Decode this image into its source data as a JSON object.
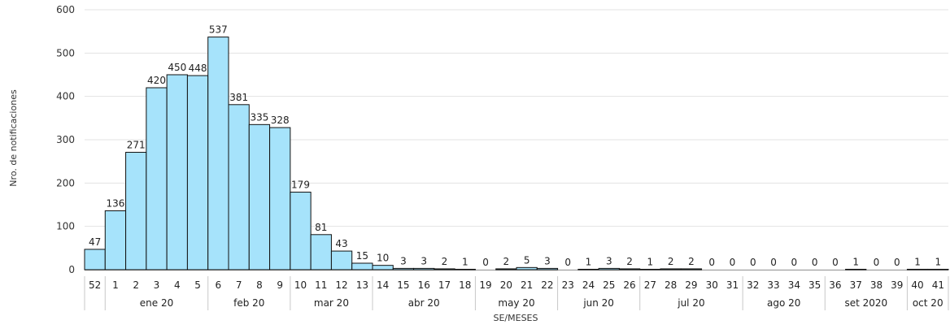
{
  "chart_data": {
    "type": "bar",
    "ylabel": "Nro. de notificaciones",
    "xlabel": "SE/MESES",
    "ylim": [
      0,
      600
    ],
    "yticks": [
      "0",
      "100",
      "200",
      "300",
      "400",
      "500",
      "600"
    ],
    "grid": true,
    "categories": [
      "52",
      "1",
      "2",
      "3",
      "4",
      "5",
      "6",
      "7",
      "8",
      "9",
      "10",
      "11",
      "12",
      "13",
      "14",
      "15",
      "16",
      "17",
      "18",
      "19",
      "20",
      "21",
      "22",
      "23",
      "24",
      "25",
      "26",
      "27",
      "28",
      "29",
      "30",
      "31",
      "32",
      "33",
      "34",
      "35",
      "36",
      "37",
      "38",
      "39",
      "40",
      "41"
    ],
    "values": [
      47,
      136,
      271,
      420,
      450,
      448,
      537,
      381,
      335,
      328,
      179,
      81,
      43,
      15,
      10,
      3,
      3,
      2,
      1,
      0,
      2,
      5,
      3,
      0,
      1,
      3,
      2,
      1,
      2,
      2,
      0,
      0,
      0,
      0,
      0,
      0,
      0,
      1,
      0,
      0,
      1,
      1
    ],
    "data_labels": [
      "47",
      "136",
      "271",
      "420",
      "450",
      "448",
      "537",
      "381",
      "335",
      "328",
      "179",
      "81",
      "43",
      "15",
      "10",
      "3",
      "3",
      "2",
      "1",
      "0",
      "2",
      "5",
      "3",
      "0",
      "1",
      "3",
      "2",
      "1",
      "2",
      "2",
      "0",
      "0",
      "0",
      "0",
      "0",
      "0",
      "0",
      "1",
      "0",
      "0",
      "1",
      "1"
    ],
    "month_groups": [
      {
        "label": "",
        "count": 1
      },
      {
        "label": "ene 20",
        "count": 5
      },
      {
        "label": "feb 20",
        "count": 4
      },
      {
        "label": "mar 20",
        "count": 4
      },
      {
        "label": "abr 20",
        "count": 5
      },
      {
        "label": "may 20",
        "count": 4
      },
      {
        "label": "jun 20",
        "count": 4
      },
      {
        "label": "jul 20",
        "count": 5
      },
      {
        "label": "ago 20",
        "count": 4
      },
      {
        "label": "set 2020",
        "count": 4
      },
      {
        "label": "oct 20",
        "count": 2
      }
    ],
    "colors": {
      "bar_fill": "#a6e3fb",
      "bar_stroke": "#111111",
      "grid": "#e3e3e3",
      "separator": "#c8c8c8"
    }
  }
}
